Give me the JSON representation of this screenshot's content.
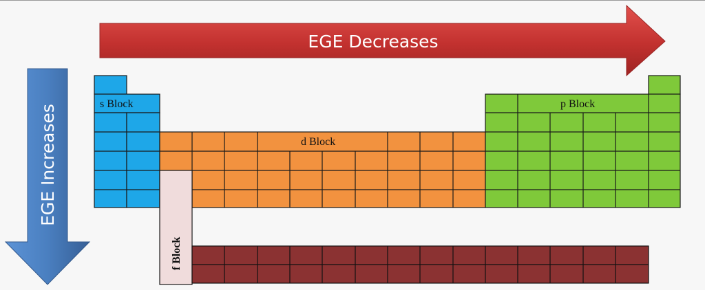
{
  "arrows": {
    "horizontal": {
      "label": "EGE Decreases",
      "color": "#c2312f"
    },
    "vertical": {
      "label": "EGE Increases",
      "color": "#4a7fc0"
    }
  },
  "blocks": {
    "s": {
      "label": "s Block",
      "color": "#1ea7e8"
    },
    "d": {
      "label": "d Block",
      "color": "#f2923f"
    },
    "p": {
      "label": "p Block",
      "color": "#7fc93a"
    },
    "f": {
      "label": "f Block",
      "color": "#f0dcdc",
      "cells_color": "#8b3232"
    }
  }
}
